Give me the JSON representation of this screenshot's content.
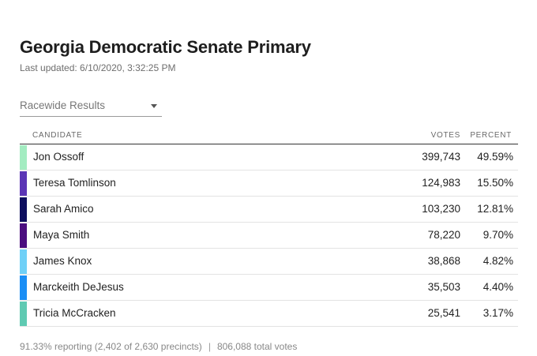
{
  "title": "Georgia Democratic Senate Primary",
  "last_updated": "Last updated: 6/10/2020, 3:32:25 PM",
  "dropdown": {
    "selected": "Racewide Results"
  },
  "table": {
    "headers": {
      "candidate": "CANDIDATE",
      "votes": "VOTES",
      "percent": "PERCENT"
    },
    "rows": [
      {
        "name": "Jon Ossoff",
        "votes": "399,743",
        "percent": "49.59%",
        "color": "#a3ecc1"
      },
      {
        "name": "Teresa Tomlinson",
        "votes": "124,983",
        "percent": "15.50%",
        "color": "#5b35b5"
      },
      {
        "name": "Sarah Amico",
        "votes": "103,230",
        "percent": "12.81%",
        "color": "#0d0e5e"
      },
      {
        "name": "Maya Smith",
        "votes": "78,220",
        "percent": "9.70%",
        "color": "#4b0e7f"
      },
      {
        "name": "James Knox",
        "votes": "38,868",
        "percent": "4.82%",
        "color": "#6fd0f7"
      },
      {
        "name": "Marckeith DeJesus",
        "votes": "35,503",
        "percent": "4.40%",
        "color": "#1a8ef5"
      },
      {
        "name": "Tricia McCracken",
        "votes": "25,541",
        "percent": "3.17%",
        "color": "#5fcab2"
      }
    ]
  },
  "footer": {
    "reporting": "91.33% reporting (2,402 of 2,630 precincts)",
    "separator": "|",
    "total_votes": "806,088 total votes"
  }
}
